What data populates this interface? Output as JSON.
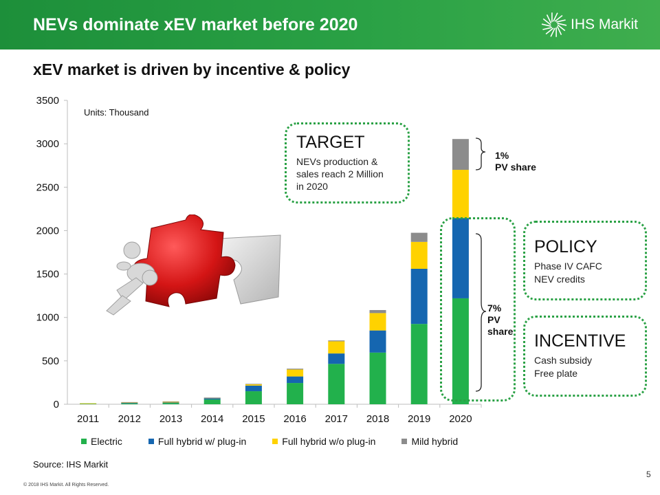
{
  "header": {
    "title": "NEVs dominate xEV market before 2020",
    "logo_text": "IHS Markit",
    "logo_icon": "starburst-logo-icon"
  },
  "subtitle": "xEV market is driven by incentive & policy",
  "units_note": "Units: Thousand",
  "target": {
    "title": "TARGET",
    "lines": [
      "NEVs production &",
      "sales reach 2 Million",
      "in 2020"
    ]
  },
  "policy": {
    "title": "POLICY",
    "lines": [
      "Phase IV CAFC",
      "NEV credits"
    ]
  },
  "incentive": {
    "title": "INCENTIVE",
    "lines": [
      "Cash subsidy",
      "Free plate"
    ]
  },
  "share_top": [
    "1%",
    "PV share"
  ],
  "share_mid": [
    "7%",
    "PV",
    "share"
  ],
  "source": "Source: IHS Markit",
  "copyright": "© 2018 IHS Markit. All Rights Reserved.",
  "page_number": "5",
  "chart_data": {
    "type": "bar",
    "stacked": true,
    "categories": [
      "2011",
      "2012",
      "2013",
      "2014",
      "2015",
      "2016",
      "2017",
      "2018",
      "2019",
      "2020"
    ],
    "ylim": [
      0,
      3500
    ],
    "yticks": [
      "0",
      "500",
      "1000",
      "1500",
      "2000",
      "2500",
      "3000",
      "3500"
    ],
    "legend_position": "bottom",
    "series": [
      {
        "name": "Electric",
        "color": "#22b14c",
        "values": [
          8,
          12,
          15,
          55,
          150,
          245,
          465,
          595,
          925,
          1220
        ]
      },
      {
        "name": "Full hybrid w/ plug-in",
        "color": "#1566b0",
        "values": [
          2,
          3,
          5,
          15,
          65,
          75,
          120,
          255,
          635,
          925
        ]
      },
      {
        "name": "Full hybrid w/o plug-in",
        "color": "#ffd200",
        "values": [
          1,
          8,
          10,
          5,
          15,
          80,
          140,
          200,
          310,
          555
        ]
      },
      {
        "name": "Mild hybrid",
        "color": "#8c8c8c",
        "values": [
          0,
          2,
          3,
          2,
          5,
          10,
          10,
          35,
          105,
          355
        ]
      }
    ]
  }
}
